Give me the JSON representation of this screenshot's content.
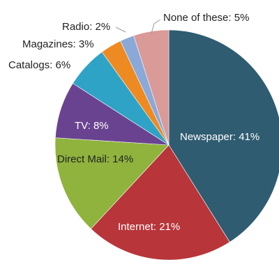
{
  "chart_data": {
    "type": "pie",
    "slices": [
      {
        "label": "Newspaper",
        "value": 41,
        "color": "#2f5c70",
        "label_color": "#ffffff",
        "text": "Newspaper: 41%"
      },
      {
        "label": "Internet",
        "value": 21,
        "color": "#b8353a",
        "label_color": "#ffffff",
        "text": "Internet: 21%"
      },
      {
        "label": "Direct Mail",
        "value": 14,
        "color": "#8fb33d",
        "label_color": "#222222",
        "text": "Direct Mail: 14%"
      },
      {
        "label": "TV",
        "value": 8,
        "color": "#6a4390",
        "label_color": "#ffffff",
        "text": "TV: 8%"
      },
      {
        "label": "Catalogs",
        "value": 6,
        "color": "#2fa3c6",
        "label_color": "#222222",
        "text": "Catalogs: 6%"
      },
      {
        "label": "Magazines",
        "value": 3,
        "color": "#ee8a22",
        "label_color": "#222222",
        "text": "Magazines: 3%"
      },
      {
        "label": "Radio",
        "value": 2,
        "color": "#8aa9d8",
        "label_color": "#222222",
        "text": "Radio: 2%"
      },
      {
        "label": "None of these",
        "value": 5,
        "color": "#d99a98",
        "label_color": "#222222",
        "text": "None of these: 5%"
      }
    ]
  }
}
